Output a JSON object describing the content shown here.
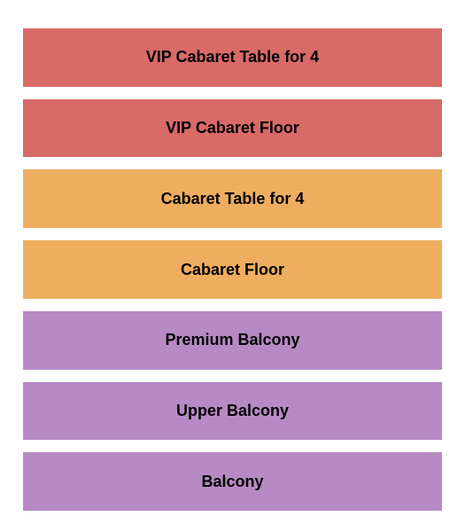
{
  "seating_chart": {
    "type": "infographic",
    "background_color": "#ffffff",
    "section_gap": 14,
    "label_fontsize": 18,
    "label_fontweight": "bold",
    "label_color": "#000000",
    "sections": [
      {
        "label": "VIP Cabaret Table for 4",
        "color": "#d86a68"
      },
      {
        "label": "VIP Cabaret Floor",
        "color": "#d86a68"
      },
      {
        "label": "Cabaret Table for 4",
        "color": "#efae5f"
      },
      {
        "label": "Cabaret Floor",
        "color": "#efae5f"
      },
      {
        "label": "Premium Balcony",
        "color": "#b88ac4"
      },
      {
        "label": "Upper Balcony",
        "color": "#b88ac4"
      },
      {
        "label": "Balcony",
        "color": "#b88ac4"
      }
    ]
  }
}
